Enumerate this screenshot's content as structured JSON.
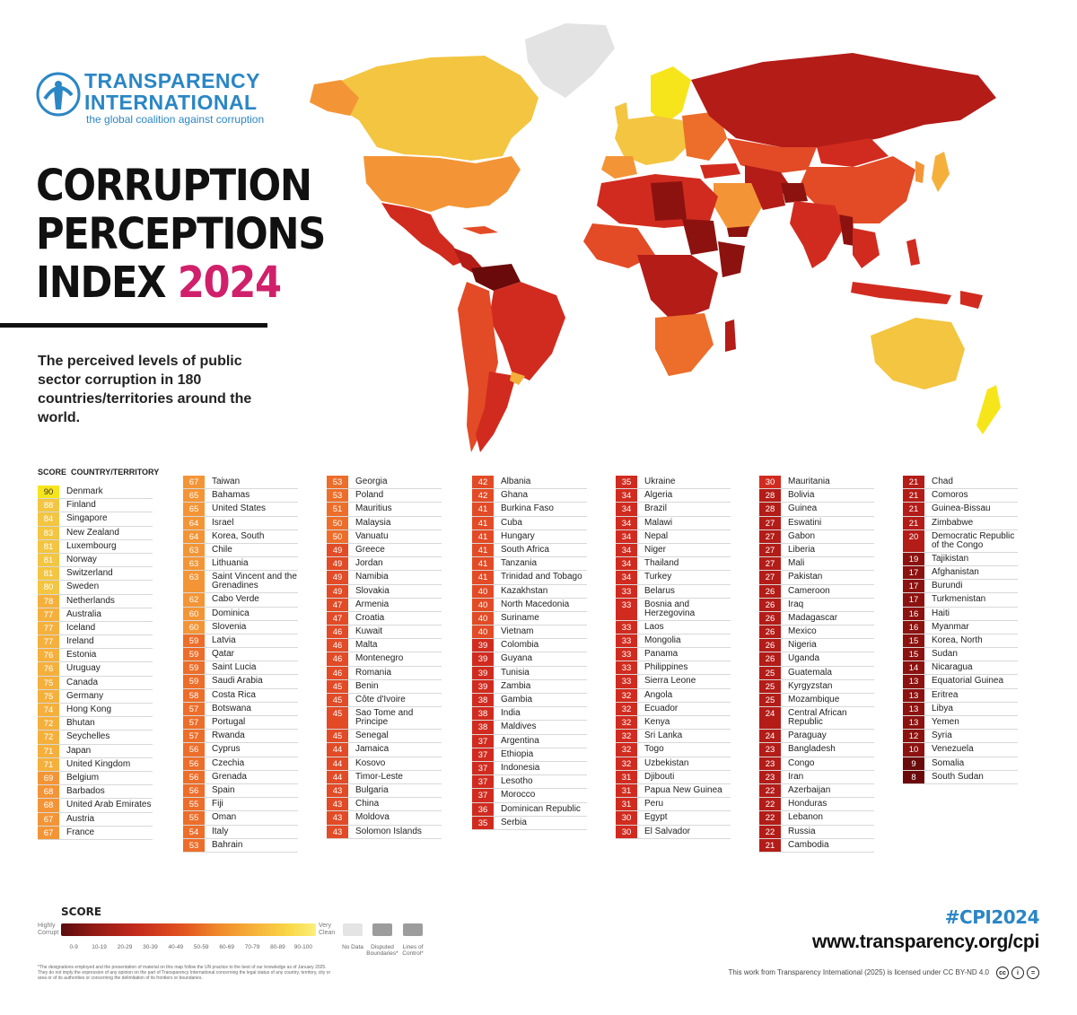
{
  "logo": {
    "line1": "TRANSPARENCY",
    "line2": "INTERNATIONAL",
    "tagline": "the global coalition against corruption"
  },
  "title": {
    "line1": "CORRUPTION",
    "line2": "PERCEPTIONS",
    "line3": "INDEX",
    "year": "2024"
  },
  "subtitle": "The perceived levels of public sector corruption in 180 countries/territories around the world.",
  "table": {
    "score_header": "SCORE",
    "country_header": "COUNTRY/TERRITORY"
  },
  "colors": {
    "s90": "#f7e51b",
    "s80": "#f3c540",
    "s70": "#f5b03c",
    "s60": "#f39536",
    "s50": "#ec6e2a",
    "s40": "#e24b26",
    "s30": "#d12b1f",
    "s20": "#b41c18",
    "s10": "#8c1210",
    "s0": "#6a0a0a",
    "brand": "#2b86c5",
    "year": "#d1206b"
  },
  "map_data": {
    "type": "choropleth",
    "metric": "SCORE",
    "entries": [
      [
        90,
        "Denmark"
      ],
      [
        88,
        "Finland"
      ],
      [
        84,
        "Singapore"
      ],
      [
        83,
        "New Zealand"
      ],
      [
        81,
        "Luxembourg"
      ],
      [
        81,
        "Norway"
      ],
      [
        81,
        "Switzerland"
      ],
      [
        80,
        "Sweden"
      ],
      [
        78,
        "Netherlands"
      ],
      [
        77,
        "Australia"
      ],
      [
        77,
        "Iceland"
      ],
      [
        77,
        "Ireland"
      ],
      [
        76,
        "Estonia"
      ],
      [
        76,
        "Uruguay"
      ],
      [
        75,
        "Canada"
      ],
      [
        75,
        "Germany"
      ],
      [
        74,
        "Hong Kong"
      ],
      [
        72,
        "Bhutan"
      ],
      [
        72,
        "Seychelles"
      ],
      [
        71,
        "Japan"
      ],
      [
        71,
        "United Kingdom"
      ],
      [
        69,
        "Belgium"
      ],
      [
        68,
        "Barbados"
      ],
      [
        68,
        "United Arab Emirates"
      ],
      [
        67,
        "Austria"
      ],
      [
        67,
        "France"
      ],
      [
        67,
        "Taiwan"
      ],
      [
        65,
        "Bahamas"
      ],
      [
        65,
        "United States"
      ],
      [
        64,
        "Israel"
      ],
      [
        64,
        "Korea, South"
      ],
      [
        63,
        "Chile"
      ],
      [
        63,
        "Lithuania"
      ],
      [
        63,
        "Saint Vincent and the Grenadines"
      ],
      [
        62,
        "Cabo Verde"
      ],
      [
        60,
        "Dominica"
      ],
      [
        60,
        "Slovenia"
      ],
      [
        59,
        "Latvia"
      ],
      [
        59,
        "Qatar"
      ],
      [
        59,
        "Saint Lucia"
      ],
      [
        59,
        "Saudi Arabia"
      ],
      [
        58,
        "Costa Rica"
      ],
      [
        57,
        "Botswana"
      ],
      [
        57,
        "Portugal"
      ],
      [
        57,
        "Rwanda"
      ],
      [
        56,
        "Cyprus"
      ],
      [
        56,
        "Czechia"
      ],
      [
        56,
        "Grenada"
      ],
      [
        56,
        "Spain"
      ],
      [
        55,
        "Fiji"
      ],
      [
        55,
        "Oman"
      ],
      [
        54,
        "Italy"
      ],
      [
        53,
        "Bahrain"
      ],
      [
        53,
        "Georgia"
      ],
      [
        53,
        "Poland"
      ],
      [
        51,
        "Mauritius"
      ],
      [
        50,
        "Malaysia"
      ],
      [
        50,
        "Vanuatu"
      ],
      [
        49,
        "Greece"
      ],
      [
        49,
        "Jordan"
      ],
      [
        49,
        "Namibia"
      ],
      [
        49,
        "Slovakia"
      ],
      [
        47,
        "Armenia"
      ],
      [
        47,
        "Croatia"
      ],
      [
        46,
        "Kuwait"
      ],
      [
        46,
        "Malta"
      ],
      [
        46,
        "Montenegro"
      ],
      [
        46,
        "Romania"
      ],
      [
        45,
        "Benin"
      ],
      [
        45,
        "Côte d'Ivoire"
      ],
      [
        45,
        "Sao Tome and Principe"
      ],
      [
        45,
        "Senegal"
      ],
      [
        44,
        "Jamaica"
      ],
      [
        44,
        "Kosovo"
      ],
      [
        44,
        "Timor-Leste"
      ],
      [
        43,
        "Bulgaria"
      ],
      [
        43,
        "China"
      ],
      [
        43,
        "Moldova"
      ],
      [
        43,
        "Solomon Islands"
      ],
      [
        42,
        "Albania"
      ],
      [
        42,
        "Ghana"
      ],
      [
        41,
        "Burkina Faso"
      ],
      [
        41,
        "Cuba"
      ],
      [
        41,
        "Hungary"
      ],
      [
        41,
        "South Africa"
      ],
      [
        41,
        "Tanzania"
      ],
      [
        41,
        "Trinidad and Tobago"
      ],
      [
        40,
        "Kazakhstan"
      ],
      [
        40,
        "North Macedonia"
      ],
      [
        40,
        "Suriname"
      ],
      [
        40,
        "Vietnam"
      ],
      [
        39,
        "Colombia"
      ],
      [
        39,
        "Guyana"
      ],
      [
        39,
        "Tunisia"
      ],
      [
        39,
        "Zambia"
      ],
      [
        38,
        "Gambia"
      ],
      [
        38,
        "India"
      ],
      [
        38,
        "Maldives"
      ],
      [
        37,
        "Argentina"
      ],
      [
        37,
        "Ethiopia"
      ],
      [
        37,
        "Indonesia"
      ],
      [
        37,
        "Lesotho"
      ],
      [
        37,
        "Morocco"
      ],
      [
        36,
        "Dominican Republic"
      ],
      [
        35,
        "Serbia"
      ],
      [
        35,
        "Ukraine"
      ],
      [
        34,
        "Algeria"
      ],
      [
        34,
        "Brazil"
      ],
      [
        34,
        "Malawi"
      ],
      [
        34,
        "Nepal"
      ],
      [
        34,
        "Niger"
      ],
      [
        34,
        "Thailand"
      ],
      [
        34,
        "Turkey"
      ],
      [
        33,
        "Belarus"
      ],
      [
        33,
        "Bosnia and Herzegovina"
      ],
      [
        33,
        "Laos"
      ],
      [
        33,
        "Mongolia"
      ],
      [
        33,
        "Panama"
      ],
      [
        33,
        "Philippines"
      ],
      [
        33,
        "Sierra Leone"
      ],
      [
        32,
        "Angola"
      ],
      [
        32,
        "Ecuador"
      ],
      [
        32,
        "Kenya"
      ],
      [
        32,
        "Sri Lanka"
      ],
      [
        32,
        "Togo"
      ],
      [
        32,
        "Uzbekistan"
      ],
      [
        31,
        "Djibouti"
      ],
      [
        31,
        "Papua New Guinea"
      ],
      [
        31,
        "Peru"
      ],
      [
        30,
        "Egypt"
      ],
      [
        30,
        "El Salvador"
      ],
      [
        30,
        "Mauritania"
      ],
      [
        28,
        "Bolivia"
      ],
      [
        28,
        "Guinea"
      ],
      [
        27,
        "Eswatini"
      ],
      [
        27,
        "Gabon"
      ],
      [
        27,
        "Liberia"
      ],
      [
        27,
        "Mali"
      ],
      [
        27,
        "Pakistan"
      ],
      [
        26,
        "Cameroon"
      ],
      [
        26,
        "Iraq"
      ],
      [
        26,
        "Madagascar"
      ],
      [
        26,
        "Mexico"
      ],
      [
        26,
        "Nigeria"
      ],
      [
        26,
        "Uganda"
      ],
      [
        25,
        "Guatemala"
      ],
      [
        25,
        "Kyrgyzstan"
      ],
      [
        25,
        "Mozambique"
      ],
      [
        24,
        "Central African Republic"
      ],
      [
        24,
        "Paraguay"
      ],
      [
        23,
        "Bangladesh"
      ],
      [
        23,
        "Congo"
      ],
      [
        23,
        "Iran"
      ],
      [
        22,
        "Azerbaijan"
      ],
      [
        22,
        "Honduras"
      ],
      [
        22,
        "Lebanon"
      ],
      [
        22,
        "Russia"
      ],
      [
        21,
        "Cambodia"
      ],
      [
        21,
        "Chad"
      ],
      [
        21,
        "Comoros"
      ],
      [
        21,
        "Guinea-Bissau"
      ],
      [
        21,
        "Zimbabwe"
      ],
      [
        20,
        "Democratic Republic of the Congo"
      ],
      [
        19,
        "Tajikistan"
      ],
      [
        17,
        "Afghanistan"
      ],
      [
        17,
        "Burundi"
      ],
      [
        17,
        "Turkmenistan"
      ],
      [
        16,
        "Haiti"
      ],
      [
        16,
        "Myanmar"
      ],
      [
        15,
        "Korea, North"
      ],
      [
        15,
        "Sudan"
      ],
      [
        14,
        "Nicaragua"
      ],
      [
        13,
        "Equatorial Guinea"
      ],
      [
        13,
        "Eritrea"
      ],
      [
        13,
        "Libya"
      ],
      [
        13,
        "Yemen"
      ],
      [
        12,
        "Syria"
      ],
      [
        10,
        "Venezuela"
      ],
      [
        9,
        "Somalia"
      ],
      [
        8,
        "South Sudan"
      ]
    ]
  },
  "legend": {
    "title": "SCORE",
    "low": "Highly Corrupt",
    "high": "Very Clean",
    "ranges": [
      "0-9",
      "10-19",
      "20-29",
      "30-39",
      "40-49",
      "50-59",
      "60-69",
      "70-79",
      "80-89",
      "90-100"
    ],
    "no_data": "No Data",
    "disputed": "Disputed Boundaries*",
    "lines": "Lines of Control*",
    "disclaimer": "*The designations employed and the presentation of material on this map follow the UN practice to the best of our knowledge as of January 2025. They do not imply the expression of any opinion on the part of Transparency International concerning the legal status of any country, territory, city or area or of its authorities or concerning the delimitation of its frontiers or boundaries."
  },
  "footer": {
    "hashtag": "#CPI2024",
    "url": "www.transparency.org/cpi",
    "license": "This work from Transparency International (2025) is licensed under CC BY-ND 4.0"
  }
}
